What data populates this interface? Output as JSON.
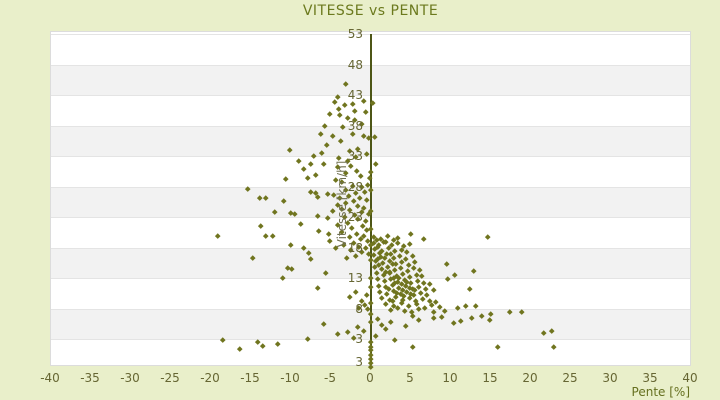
{
  "title": "VITESSE vs PENTE",
  "colors": {
    "background": "#e9efca",
    "title_text": "#6c7a1e",
    "tick_text": "#666633",
    "axis_line": "#4d5616",
    "point": "#70751f",
    "band_gray": "#f2f2f2",
    "band_white": "#ffffff"
  },
  "chart_data": {
    "type": "scatter",
    "title": "VITESSE vs PENTE",
    "xlabel": "Pente [%]",
    "ylabel": "Vitesse [km/h]",
    "legend_position": "none",
    "grid": "horizontal-alternating-bands",
    "xlim": [
      -40,
      40
    ],
    "x_ticks": [
      -40,
      -35,
      -30,
      -25,
      -20,
      -15,
      -10,
      -5,
      0,
      5,
      10,
      15,
      20,
      25,
      30,
      35,
      40
    ],
    "y_ticks": [
      53,
      48,
      43,
      38,
      33,
      28,
      23,
      18,
      13,
      8,
      3
    ],
    "y_axis_bottom_label": "3",
    "points": [
      [
        -3.2,
        44.8
      ],
      [
        -4.1,
        42.7
      ],
      [
        -0.9,
        42.1
      ],
      [
        0.2,
        41.7
      ],
      [
        -4.5,
        41.9
      ],
      [
        -3.3,
        41.4
      ],
      [
        -2.3,
        41.5
      ],
      [
        -4.0,
        40.7
      ],
      [
        -2.0,
        40.5
      ],
      [
        -5.1,
        39.9
      ],
      [
        -3.9,
        39.7
      ],
      [
        -2.0,
        38.9
      ],
      [
        -6.3,
        36.6
      ],
      [
        -4.8,
        36.3
      ],
      [
        -2.3,
        36.6
      ],
      [
        -0.9,
        36.3
      ],
      [
        0.5,
        36.2
      ],
      [
        -3.8,
        35.5
      ],
      [
        -0.3,
        36.0
      ],
      [
        -6.1,
        33.5
      ],
      [
        -10.1,
        34.1
      ],
      [
        -9.0,
        32.3
      ],
      [
        -2.9,
        32.2
      ],
      [
        -4.0,
        32.7
      ],
      [
        -7.5,
        31.7
      ],
      [
        -5.9,
        31.8
      ],
      [
        -2.5,
        31.4
      ],
      [
        -1.3,
        29.7
      ],
      [
        -0.1,
        29.4
      ],
      [
        -7.9,
        29.4
      ],
      [
        -10.6,
        29.2
      ],
      [
        -6.9,
        30.0
      ],
      [
        0.6,
        31.7
      ],
      [
        -1.8,
        30.6
      ],
      [
        -4.4,
        29.1
      ],
      [
        -3.1,
        30.2
      ],
      [
        -8.4,
        30.9
      ],
      [
        -0.5,
        33.4
      ],
      [
        -1.6,
        34.2
      ],
      [
        -5.5,
        34.8
      ],
      [
        -2.7,
        33.9
      ],
      [
        -3.5,
        37.8
      ],
      [
        -1.2,
        38.3
      ],
      [
        -2.9,
        39.2
      ],
      [
        -0.6,
        40.2
      ],
      [
        -5.8,
        38.0
      ],
      [
        -7.1,
        33.0
      ],
      [
        -4.2,
        31.2
      ],
      [
        -1.9,
        32.8
      ],
      [
        -3.6,
        28.7
      ],
      [
        -0.4,
        28.3
      ],
      [
        -1.1,
        27.9
      ],
      [
        -2.3,
        28.1
      ],
      [
        -3.2,
        27.5
      ],
      [
        -0.8,
        27.2
      ],
      [
        -1.9,
        26.9
      ],
      [
        -2.8,
        26.5
      ],
      [
        -3.9,
        26.2
      ],
      [
        -4.6,
        26.7
      ],
      [
        -1.4,
        26.2
      ],
      [
        -0.5,
        25.9
      ],
      [
        -2.2,
        25.6
      ],
      [
        -3.1,
        25.3
      ],
      [
        -4.2,
        25.0
      ],
      [
        -1.7,
        24.8
      ],
      [
        -0.9,
        24.5
      ],
      [
        -2.6,
        24.2
      ],
      [
        -3.6,
        24.4
      ],
      [
        -4.8,
        24.1
      ],
      [
        -1.2,
        23.9
      ],
      [
        -0.3,
        23.6
      ],
      [
        -2.0,
        23.3
      ],
      [
        -3.3,
        23.0
      ],
      [
        -1.6,
        22.7
      ],
      [
        -0.7,
        22.4
      ],
      [
        -2.9,
        22.1
      ],
      [
        -4.1,
        21.8
      ],
      [
        -1.0,
        21.5
      ],
      [
        -2.4,
        21.2
      ],
      [
        -0.5,
        20.9
      ],
      [
        -3.7,
        20.6
      ],
      [
        -1.8,
        20.3
      ],
      [
        -0.9,
        20.0
      ],
      [
        -2.7,
        19.7
      ],
      [
        -1.3,
        19.4
      ],
      [
        -0.4,
        19.1
      ],
      [
        -2.1,
        18.8
      ],
      [
        -3.4,
        18.5
      ],
      [
        -1.5,
        18.2
      ],
      [
        -0.6,
        17.9
      ],
      [
        -2.5,
        17.6
      ],
      [
        -1.1,
        17.3
      ],
      [
        -0.3,
        17.0
      ],
      [
        -1.9,
        16.7
      ],
      [
        -3.0,
        16.4
      ],
      [
        -4.4,
        17.9
      ],
      [
        -5.2,
        19.1
      ],
      [
        -19.1,
        20.0
      ],
      [
        -15.4,
        27.6
      ],
      [
        -13.9,
        26.1
      ],
      [
        -13.1,
        26.1
      ],
      [
        -10.9,
        25.6
      ],
      [
        -7.5,
        27.1
      ],
      [
        -6.9,
        26.9
      ],
      [
        -6.6,
        26.4
      ],
      [
        -5.4,
        26.8
      ],
      [
        -10.0,
        23.7
      ],
      [
        -9.5,
        23.5
      ],
      [
        -6.6,
        23.2
      ],
      [
        -5.4,
        22.8
      ],
      [
        -13.8,
        21.5
      ],
      [
        -13.1,
        19.9
      ],
      [
        -12.3,
        20.0
      ],
      [
        -6.5,
        20.7
      ],
      [
        -5.3,
        20.3
      ],
      [
        -10.0,
        18.4
      ],
      [
        -8.4,
        17.9
      ],
      [
        -7.8,
        17.1
      ],
      [
        -7.5,
        16.1
      ],
      [
        -14.8,
        16.4
      ],
      [
        -10.4,
        14.6
      ],
      [
        -9.9,
        14.5
      ],
      [
        -5.6,
        13.8
      ],
      [
        -11.0,
        13.0
      ],
      [
        -6.6,
        11.4
      ],
      [
        -8.8,
        21.9
      ],
      [
        -12.0,
        23.8
      ],
      [
        -0.5,
        10.2
      ],
      [
        -1.2,
        9.3
      ],
      [
        -0.8,
        8.6
      ],
      [
        -1.9,
        10.8
      ],
      [
        -0.4,
        7.9
      ],
      [
        -2.6,
        9.9
      ],
      [
        -1.5,
        8.1
      ],
      [
        0.4,
        19.8
      ],
      [
        1.2,
        19.5
      ],
      [
        2.1,
        19.9
      ],
      [
        0.7,
        19.2
      ],
      [
        2.8,
        19.3
      ],
      [
        1.6,
        19.0
      ],
      [
        3.4,
        19.6
      ],
      [
        5.0,
        20.2
      ],
      [
        6.6,
        19.5
      ],
      [
        0.3,
        18.8
      ],
      [
        1.0,
        18.5
      ],
      [
        1.9,
        18.9
      ],
      [
        2.6,
        18.4
      ],
      [
        3.3,
        18.7
      ],
      [
        4.1,
        18.3
      ],
      [
        0.8,
        18.1
      ],
      [
        4.8,
        18.6
      ],
      [
        0.5,
        17.8
      ],
      [
        1.4,
        17.5
      ],
      [
        2.2,
        17.9
      ],
      [
        3.0,
        17.4
      ],
      [
        3.8,
        17.7
      ],
      [
        1.1,
        17.2
      ],
      [
        4.5,
        17.3
      ],
      [
        2.5,
        17.0
      ],
      [
        0.4,
        16.8
      ],
      [
        1.2,
        16.5
      ],
      [
        2.0,
        16.9
      ],
      [
        2.9,
        16.4
      ],
      [
        3.6,
        16.7
      ],
      [
        4.4,
        16.2
      ],
      [
        5.2,
        16.6
      ],
      [
        0.9,
        16.1
      ],
      [
        1.7,
        16.3
      ],
      [
        0.6,
        15.8
      ],
      [
        1.5,
        15.5
      ],
      [
        2.3,
        15.9
      ],
      [
        3.1,
        15.4
      ],
      [
        3.9,
        15.7
      ],
      [
        4.7,
        15.2
      ],
      [
        5.5,
        15.6
      ],
      [
        1.0,
        15.1
      ],
      [
        2.7,
        15.3
      ],
      [
        9.5,
        15.3
      ],
      [
        14.6,
        19.7
      ],
      [
        0.5,
        14.8
      ],
      [
        1.3,
        14.5
      ],
      [
        2.1,
        14.9
      ],
      [
        3.0,
        14.4
      ],
      [
        3.7,
        14.7
      ],
      [
        4.6,
        14.2
      ],
      [
        5.3,
        14.6
      ],
      [
        6.1,
        14.3
      ],
      [
        1.8,
        14.1
      ],
      [
        2.4,
        14.0
      ],
      [
        12.9,
        14.2
      ],
      [
        0.7,
        13.8
      ],
      [
        1.6,
        13.5
      ],
      [
        2.4,
        13.9
      ],
      [
        3.2,
        13.4
      ],
      [
        4.0,
        13.7
      ],
      [
        4.9,
        13.2
      ],
      [
        5.7,
        13.6
      ],
      [
        6.4,
        13.3
      ],
      [
        2.9,
        13.1
      ],
      [
        3.5,
        13.0
      ],
      [
        10.5,
        13.5
      ],
      [
        0.8,
        12.8
      ],
      [
        1.7,
        12.5
      ],
      [
        2.5,
        12.9
      ],
      [
        3.4,
        12.4
      ],
      [
        4.2,
        12.7
      ],
      [
        5.0,
        12.2
      ],
      [
        5.8,
        12.6
      ],
      [
        6.6,
        12.3
      ],
      [
        7.3,
        12.1
      ],
      [
        3.9,
        12.0
      ],
      [
        9.6,
        12.8
      ],
      [
        3.0,
        12.2
      ],
      [
        4.5,
        12.4
      ],
      [
        1.0,
        11.8
      ],
      [
        1.9,
        11.5
      ],
      [
        2.7,
        11.9
      ],
      [
        3.5,
        11.4
      ],
      [
        4.3,
        11.7
      ],
      [
        5.2,
        11.2
      ],
      [
        6.0,
        11.6
      ],
      [
        6.8,
        11.3
      ],
      [
        4.0,
        11.1
      ],
      [
        7.9,
        11.0
      ],
      [
        12.3,
        11.2
      ],
      [
        2.2,
        11.2
      ],
      [
        4.8,
        11.4
      ],
      [
        5.5,
        11.0
      ],
      [
        1.1,
        10.8
      ],
      [
        2.0,
        10.5
      ],
      [
        2.8,
        10.9
      ],
      [
        3.7,
        10.4
      ],
      [
        4.5,
        10.7
      ],
      [
        5.4,
        10.2
      ],
      [
        6.2,
        10.6
      ],
      [
        7.0,
        10.3
      ],
      [
        4.1,
        10.1
      ],
      [
        3.2,
        10.6
      ],
      [
        5.0,
        10.4
      ],
      [
        1.4,
        9.8
      ],
      [
        2.3,
        9.5
      ],
      [
        3.1,
        9.9
      ],
      [
        4.0,
        9.4
      ],
      [
        4.8,
        9.7
      ],
      [
        5.6,
        9.2
      ],
      [
        6.5,
        9.6
      ],
      [
        7.3,
        9.3
      ],
      [
        8.1,
        9.1
      ],
      [
        2.7,
        9.2
      ],
      [
        1.8,
        8.8
      ],
      [
        2.8,
        8.5
      ],
      [
        3.8,
        8.9
      ],
      [
        4.7,
        8.4
      ],
      [
        5.7,
        8.7
      ],
      [
        6.7,
        8.2
      ],
      [
        7.6,
        8.6
      ],
      [
        8.6,
        8.3
      ],
      [
        11.9,
        8.4
      ],
      [
        13.1,
        8.4
      ],
      [
        10.8,
        8.1
      ],
      [
        3.4,
        8.2
      ],
      [
        2.5,
        7.8
      ],
      [
        4.2,
        7.6
      ],
      [
        6.0,
        7.9
      ],
      [
        7.8,
        7.5
      ],
      [
        9.2,
        7.7
      ],
      [
        5.1,
        7.4
      ],
      [
        15.0,
        7.1
      ],
      [
        17.3,
        7.4
      ],
      [
        18.8,
        7.4
      ],
      [
        21.6,
        4.0
      ],
      [
        22.6,
        4.3
      ],
      [
        15.9,
        1.7
      ],
      [
        22.9,
        1.7
      ],
      [
        13.9,
        6.8
      ],
      [
        14.8,
        6.1
      ],
      [
        12.6,
        6.5
      ],
      [
        11.2,
        6.0
      ],
      [
        10.3,
        5.7
      ],
      [
        -18.5,
        2.9
      ],
      [
        -16.4,
        1.4
      ],
      [
        -14.1,
        2.6
      ],
      [
        -13.5,
        1.9
      ],
      [
        -11.6,
        2.3
      ],
      [
        -7.9,
        3.0
      ],
      [
        -5.9,
        5.5
      ],
      [
        -2.9,
        4.2
      ],
      [
        -4.2,
        3.8
      ],
      [
        -1.6,
        5.0
      ],
      [
        -0.9,
        4.4
      ],
      [
        -2.1,
        3.2
      ],
      [
        1.9,
        4.6
      ],
      [
        2.5,
        5.9
      ],
      [
        4.4,
        5.2
      ],
      [
        3.0,
        2.9
      ],
      [
        6.0,
        6.2
      ],
      [
        7.8,
        6.5
      ],
      [
        5.2,
        6.8
      ],
      [
        0.9,
        6.4
      ],
      [
        1.4,
        5.4
      ],
      [
        8.8,
        6.7
      ],
      [
        0.6,
        3.5
      ],
      [
        5.2,
        1.8
      ],
      [
        0,
        2.5
      ],
      [
        0,
        1.8
      ],
      [
        0,
        1.2
      ],
      [
        0,
        0.5
      ],
      [
        0,
        -0.2
      ],
      [
        0,
        -0.9
      ],
      [
        0,
        -1.5
      ],
      [
        0,
        5.8
      ],
      [
        0,
        7.2
      ],
      [
        0,
        9.0
      ],
      [
        0,
        11.5
      ],
      [
        0,
        13.0
      ],
      [
        0,
        16.0
      ],
      [
        0,
        18.5
      ],
      [
        0,
        21.0
      ],
      [
        0,
        24.0
      ],
      [
        0,
        27.5
      ],
      [
        0,
        30.5
      ]
    ]
  }
}
